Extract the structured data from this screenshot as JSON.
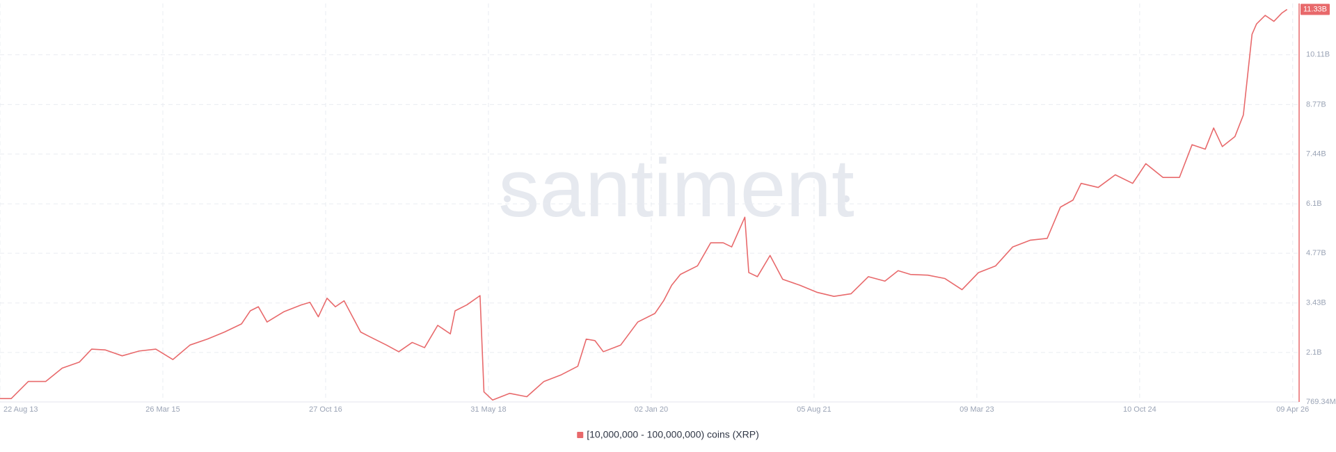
{
  "chart_data": {
    "type": "line",
    "watermark": "santiment",
    "current_value_label": "11.33B",
    "xlim": [
      "2013-08-22",
      "2026-05-02"
    ],
    "xticks": [
      {
        "value": "2013-08-22",
        "label": "22 Aug 13"
      },
      {
        "value": "2015-03-26",
        "label": "26 Mar 15"
      },
      {
        "value": "2016-10-27",
        "label": "27 Oct 16"
      },
      {
        "value": "2018-05-31",
        "label": "31 May 18"
      },
      {
        "value": "2020-01-02",
        "label": "02 Jan 20"
      },
      {
        "value": "2021-08-05",
        "label": "05 Aug 21"
      },
      {
        "value": "2023-03-09",
        "label": "09 Mar 23"
      },
      {
        "value": "2024-10-10",
        "label": "10 Oct 24"
      },
      {
        "value": "2026-04-09",
        "label": "09 Apr 26"
      }
    ],
    "ylim": [
      0.76934,
      11.49
    ],
    "yticks": [
      {
        "value": 0.76934,
        "label": "769.34M"
      },
      {
        "value": 2.1,
        "label": "2.1B"
      },
      {
        "value": 3.43,
        "label": "3.43B"
      },
      {
        "value": 4.77,
        "label": "4.77B"
      },
      {
        "value": 6.1,
        "label": "6.1B"
      },
      {
        "value": 7.44,
        "label": "7.44B"
      },
      {
        "value": 8.77,
        "label": "8.77B"
      },
      {
        "value": 10.11,
        "label": "10.11B"
      }
    ],
    "grid": true,
    "legend": "bottom",
    "x": [
      "2013-08-22",
      "2013-10-01",
      "2013-12-01",
      "2014-02-01",
      "2014-04-01",
      "2014-06-01",
      "2014-07-15",
      "2014-09-01",
      "2014-11-01",
      "2015-01-01",
      "2015-03-01",
      "2015-05-01",
      "2015-07-01",
      "2015-09-01",
      "2015-11-01",
      "2016-01-01",
      "2016-02-01",
      "2016-03-01",
      "2016-04-01",
      "2016-06-01",
      "2016-08-01",
      "2016-09-01",
      "2016-10-01",
      "2016-11-01",
      "2016-12-01",
      "2017-01-01",
      "2017-03-01",
      "2017-04-01",
      "2017-06-01",
      "2017-07-15",
      "2017-09-01",
      "2017-10-15",
      "2017-12-01",
      "2018-01-15",
      "2018-02-01",
      "2018-03-15",
      "2018-05-01",
      "2018-05-15",
      "2018-06-15",
      "2018-08-15",
      "2018-10-15",
      "2018-12-15",
      "2019-02-15",
      "2019-04-15",
      "2019-05-15",
      "2019-06-15",
      "2019-07-15",
      "2019-09-15",
      "2019-11-15",
      "2020-01-15",
      "2020-02-15",
      "2020-03-15",
      "2020-04-15",
      "2020-06-15",
      "2020-08-01",
      "2020-09-15",
      "2020-10-15",
      "2020-12-01",
      "2020-12-15",
      "2021-01-15",
      "2021-03-01",
      "2021-04-15",
      "2021-06-15",
      "2021-08-15",
      "2021-10-15",
      "2021-12-15",
      "2022-02-15",
      "2022-04-15",
      "2022-06-01",
      "2022-07-15",
      "2022-09-15",
      "2022-11-15",
      "2023-01-15",
      "2023-03-15",
      "2023-05-15",
      "2023-07-15",
      "2023-09-15",
      "2023-11-15",
      "2024-01-01",
      "2024-02-15",
      "2024-03-15",
      "2024-05-15",
      "2024-07-15",
      "2024-09-15",
      "2024-11-01",
      "2025-01-01",
      "2025-03-01",
      "2025-04-15",
      "2025-06-01",
      "2025-07-01",
      "2025-08-01",
      "2025-09-15",
      "2025-10-15",
      "2025-11-15",
      "2025-12-01",
      "2026-01-01",
      "2026-02-01",
      "2026-03-01",
      "2026-03-20"
    ],
    "series": [
      {
        "name": "[10,000,000 - 100,000,000) coins (XRP)",
        "color": "#e8696b",
        "values": [
          0.86,
          0.86,
          1.32,
          1.32,
          1.68,
          1.84,
          2.19,
          2.17,
          2.01,
          2.14,
          2.19,
          1.91,
          2.3,
          2.46,
          2.65,
          2.87,
          3.22,
          3.33,
          2.92,
          3.2,
          3.38,
          3.45,
          3.06,
          3.56,
          3.33,
          3.49,
          2.65,
          2.53,
          2.3,
          2.12,
          2.37,
          2.23,
          2.83,
          2.6,
          3.22,
          3.38,
          3.63,
          1.04,
          0.82,
          1.0,
          0.91,
          1.32,
          1.5,
          1.73,
          2.46,
          2.42,
          2.12,
          2.3,
          2.92,
          3.15,
          3.49,
          3.91,
          4.2,
          4.43,
          5.05,
          5.05,
          4.94,
          5.74,
          4.25,
          4.14,
          4.71,
          4.07,
          3.91,
          3.72,
          3.61,
          3.68,
          4.14,
          4.02,
          4.3,
          4.2,
          4.18,
          4.09,
          3.79,
          4.25,
          4.43,
          4.94,
          5.12,
          5.17,
          6.01,
          6.2,
          6.65,
          6.54,
          6.88,
          6.65,
          7.18,
          6.81,
          6.81,
          7.69,
          7.57,
          8.14,
          7.64,
          7.91,
          8.49,
          10.66,
          10.94,
          11.17,
          11.01,
          11.23,
          11.33
        ]
      }
    ]
  }
}
